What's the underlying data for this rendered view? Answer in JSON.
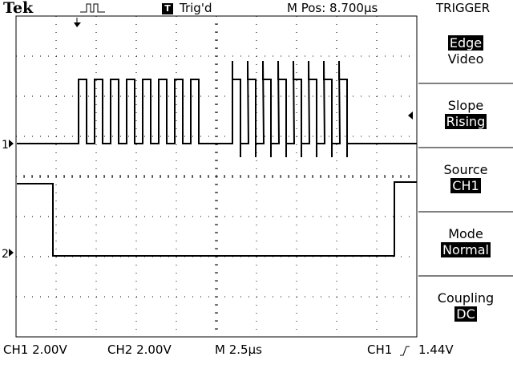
{
  "header": {
    "brand": "Tek",
    "trigger_status_icon": "T",
    "trigger_status": "Trig'd",
    "position": "M Pos: 8.700µs",
    "menu_title": "TRIGGER"
  },
  "menu": {
    "type": {
      "selected": "Edge",
      "other": "Video"
    },
    "slope": {
      "label": "Slope",
      "value": "Rising"
    },
    "source": {
      "label": "Source",
      "value": "CH1"
    },
    "mode": {
      "label": "Mode",
      "value": "Normal"
    },
    "coupling": {
      "label": "Coupling",
      "value": "DC"
    }
  },
  "markers": {
    "ch1": "1",
    "ch2": "2"
  },
  "footer": {
    "ch1_scale": "CH1  2.00V",
    "ch2_scale": "CH2  2.00V",
    "timebase": "M 2.5µs",
    "trigger_source": "CH1",
    "trigger_level": "1.44V"
  },
  "colors": {
    "background": "#ffffff",
    "trace": "#000000",
    "graticule": "#000000"
  }
}
